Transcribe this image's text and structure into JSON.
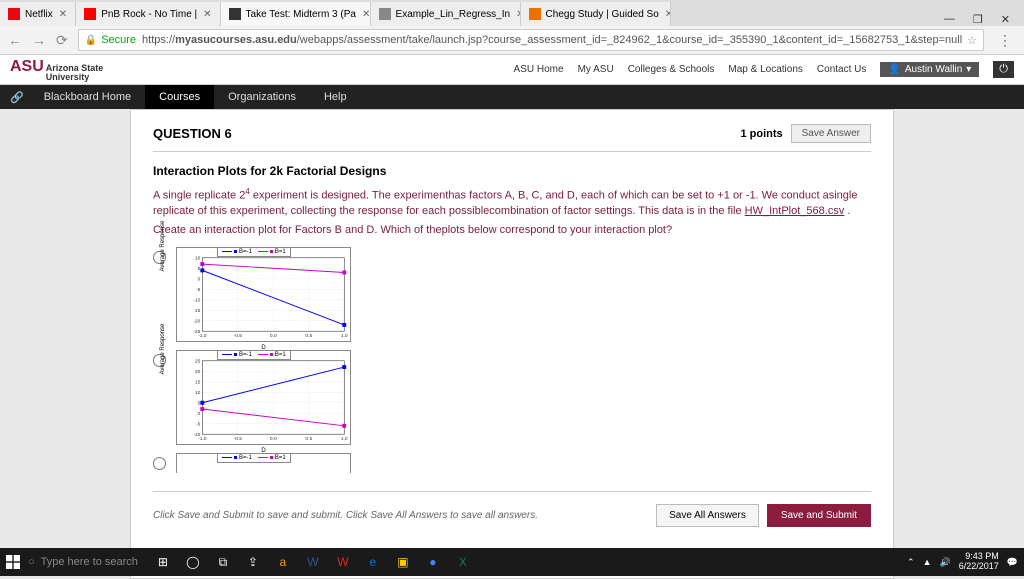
{
  "browser": {
    "tabs": [
      {
        "label": "Netflix",
        "favicon": "#e50914"
      },
      {
        "label": "PnB Rock - No Time |",
        "favicon": "#ff0000"
      },
      {
        "label": "Take Test: Midterm 3 (Pa",
        "favicon": "#333333",
        "active": true
      },
      {
        "label": "Example_Lin_Regress_In",
        "favicon": "#888888"
      },
      {
        "label": "Chegg Study | Guided So",
        "favicon": "#eb7100"
      }
    ],
    "win_controls": {
      "min": "—",
      "max": "❐",
      "close": "✕"
    },
    "nav": {
      "back": "←",
      "fwd": "→",
      "reload": "⟳"
    },
    "secure_label": "Secure",
    "url_prefix": "https://",
    "url_host": "myasucourses.asu.edu",
    "url_path": "/webapps/assessment/take/launch.jsp?course_assessment_id=_824962_1&course_id=_355390_1&content_id=_15682753_1&step=null",
    "star": "☆",
    "menu": "⋮"
  },
  "asu": {
    "logo_main": "ASU",
    "logo_sub1": "Arizona State",
    "logo_sub2": "University",
    "links": [
      "ASU Home",
      "My ASU",
      "Colleges & Schools",
      "Map & Locations",
      "Contact Us"
    ],
    "user": "Austin Wallin",
    "power": "⏻"
  },
  "bb": {
    "items": [
      "Blackboard Home",
      "Courses",
      "Organizations",
      "Help"
    ],
    "active_index": 1
  },
  "question": {
    "header": "QUESTION 6",
    "points_label": "1 points",
    "save_answer": "Save Answer",
    "subtitle": "Interaction Plots for 2k Factorial Designs",
    "body1_a": "A single replicate 2",
    "body1_sup": "4",
    "body1_b": " experiment is designed. The experimenthas factors A, B, C, and D, each of which can be set to +1 or -1. We conduct asingle replicate of this experiment, collecting the response for each possiblecombination of factor settings. This data is in the file ",
    "body1_link": "HW_IntPlot_568.csv",
    "body1_c": " .",
    "body2": "Create an interaction plot for Factors B and D. Which of theplots below correspond to your interaction plot?",
    "plots": {
      "legend_items": [
        {
          "label": "B=-1",
          "color": "#0000ff"
        },
        {
          "label": "B=1",
          "color": "#cc00cc"
        }
      ],
      "ylabel": "Average Response",
      "xlabel": "D",
      "options": [
        {
          "yticks": [
            "10",
            "5",
            "0",
            "-5",
            "-10",
            "-15",
            "-20",
            "-25"
          ],
          "xticks": [
            "-1.0",
            "-0.5",
            "0.0",
            "0.5",
            "1.0"
          ],
          "ylim": [
            -25,
            10
          ],
          "series": [
            {
              "color": "#0000ff",
              "points": [
                [
                  -1,
                  4
                ],
                [
                  1,
                  -22
                ]
              ]
            },
            {
              "color": "#cc00cc",
              "points": [
                [
                  -1,
                  7
                ],
                [
                  1,
                  3
                ]
              ]
            }
          ]
        },
        {
          "yticks": [
            "25",
            "20",
            "15",
            "10",
            "5",
            "0",
            "-5",
            "-10"
          ],
          "xticks": [
            "-1.0",
            "-0.5",
            "0.0",
            "0.5",
            "1.0"
          ],
          "ylim": [
            -10,
            25
          ],
          "series": [
            {
              "color": "#0000ff",
              "points": [
                [
                  -1,
                  5
                ],
                [
                  1,
                  22
                ]
              ]
            },
            {
              "color": "#cc00cc",
              "points": [
                [
                  -1,
                  2
                ],
                [
                  1,
                  -6
                ]
              ]
            }
          ]
        },
        {
          "yticks": [],
          "xticks": [],
          "ylim": [
            0,
            1
          ],
          "series": []
        }
      ]
    },
    "footer_text": "Click Save and Submit to save and submit. Click Save All Answers to save all answers.",
    "save_all": "Save All Answers",
    "save_submit": "Save and Submit",
    "primary_color": "#8c1d40"
  },
  "taskbar": {
    "search_placeholder": "Type here to search",
    "icons": [
      {
        "glyph": "⊞",
        "color": "#ffffff"
      },
      {
        "glyph": "◯",
        "color": "#ffffff"
      },
      {
        "glyph": "⧉",
        "color": "#ffffff"
      },
      {
        "glyph": "⇪",
        "color": "#ffffff"
      },
      {
        "glyph": "a",
        "color": "#ff9900"
      },
      {
        "glyph": "W",
        "color": "#2b579a"
      },
      {
        "glyph": "W",
        "color": "#e2231a"
      },
      {
        "glyph": "e",
        "color": "#0078d7"
      },
      {
        "glyph": "▣",
        "color": "#ffcc00"
      },
      {
        "glyph": "●",
        "color": "#4285f4"
      },
      {
        "glyph": "X",
        "color": "#217346"
      }
    ],
    "time": "9:43 PM",
    "date": "6/22/2017"
  }
}
